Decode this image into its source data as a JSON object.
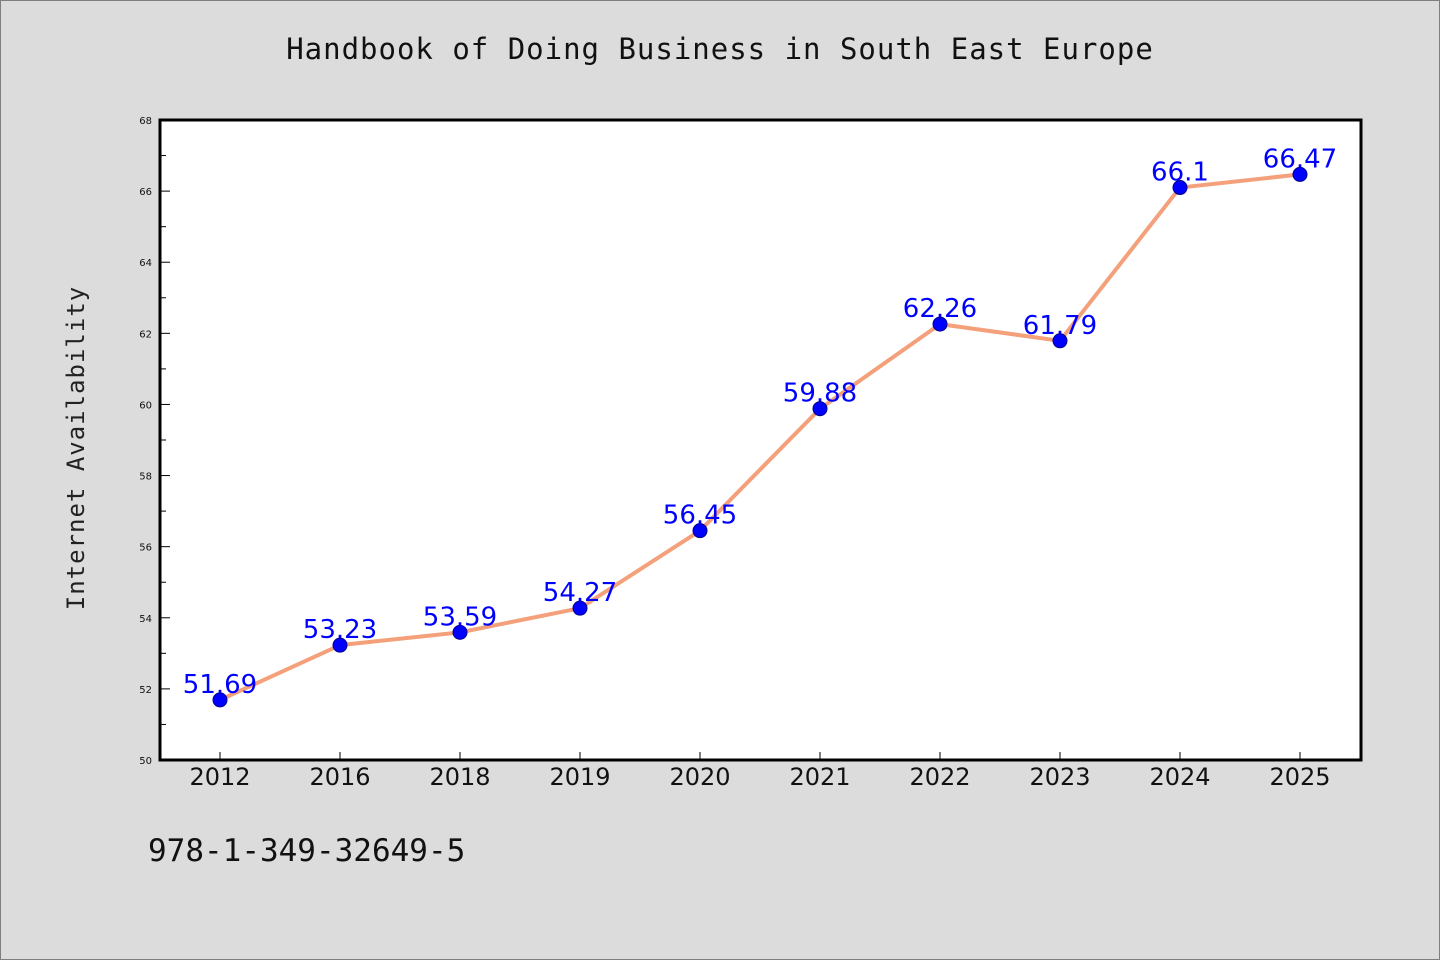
{
  "title": "Handbook of Doing Business in South East Europe",
  "footer": "978-1-349-32649-5",
  "colors": {
    "background": "#dcdcdc",
    "plot_background": "#ffffff",
    "line": "#f4a07a",
    "marker": "#0000ff",
    "data_label": "#0000ff"
  },
  "chart_data": {
    "type": "line",
    "title": "Handbook of Doing Business in South East Europe",
    "xlabel": "",
    "ylabel": "Internet Availability",
    "categories": [
      "2012",
      "2016",
      "2018",
      "2019",
      "2020",
      "2021",
      "2022",
      "2023",
      "2024",
      "2025"
    ],
    "series": [
      {
        "values": [
          51.69,
          53.23,
          53.59,
          54.27,
          56.45,
          59.88,
          62.26,
          61.79,
          66.1,
          66.47
        ]
      }
    ],
    "data_labels": [
      "51.69",
      "53.23",
      "53.59",
      "54.27",
      "56.45",
      "59.88",
      "62.26",
      "61.79",
      "66.1",
      "66.47"
    ],
    "ylim": [
      50,
      68
    ],
    "yticks": [
      50,
      52,
      54,
      56,
      58,
      60,
      62,
      64,
      66,
      68
    ],
    "grid": false,
    "legend": "none"
  }
}
